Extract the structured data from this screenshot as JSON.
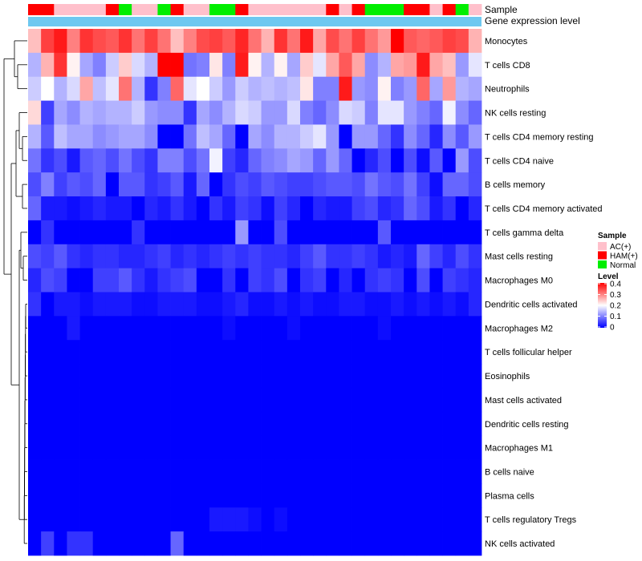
{
  "chart_data": {
    "type": "heatmap",
    "row_labels": [
      "Monocytes",
      "T cells CD8",
      "Neutrophils",
      "NK cells resting",
      "T cells CD4 memory resting",
      "T cells CD4 naive",
      "B cells memory",
      "T cells CD4 memory activated",
      "T cells gamma delta",
      "Mast cells resting",
      "Macrophages M0",
      "Dendritic cells activated",
      "Macrophages M2",
      "T cells follicular helper",
      "Eosinophils",
      "Mast cells activated",
      "Dendritic cells resting",
      "Macrophages M1",
      "B cells naive",
      "Plasma cells",
      "T cells regulatory  Tregs",
      "NK cells activated"
    ],
    "n_columns": 35,
    "annotation_rows": [
      {
        "label": "Sample",
        "values": [
          "HAM(+)",
          "HAM(+)",
          "AC(+)",
          "AC(+)",
          "AC(+)",
          "AC(+)",
          "HAM(+)",
          "Normal",
          "AC(+)",
          "AC(+)",
          "Normal",
          "HAM(+)",
          "AC(+)",
          "AC(+)",
          "Normal",
          "Normal",
          "HAM(+)",
          "AC(+)",
          "AC(+)",
          "AC(+)",
          "AC(+)",
          "AC(+)",
          "AC(+)",
          "HAM(+)",
          "AC(+)",
          "HAM(+)",
          "Normal",
          "Normal",
          "Normal",
          "HAM(+)",
          "HAM(+)",
          "AC(+)",
          "HAM(+)",
          "Normal",
          "AC(+)"
        ]
      },
      {
        "label": "Gene expression level",
        "values": "single group (all columns)"
      }
    ],
    "values": [
      [
        0.25,
        0.35,
        0.38,
        0.3,
        0.36,
        0.34,
        0.33,
        0.36,
        0.31,
        0.35,
        0.31,
        0.25,
        0.3,
        0.34,
        0.35,
        0.33,
        0.37,
        0.31,
        0.26,
        0.36,
        0.31,
        0.38,
        0.27,
        0.34,
        0.31,
        0.35,
        0.31,
        0.28,
        0.4,
        0.33,
        0.32,
        0.33,
        0.35,
        0.34,
        0.26
      ],
      [
        0.14,
        0.26,
        0.36,
        0.21,
        0.13,
        0.1,
        0.16,
        0.24,
        0.17,
        0.14,
        0.4,
        0.4,
        0.09,
        0.1,
        0.22,
        0.1,
        0.38,
        0.21,
        0.14,
        0.21,
        0.13,
        0.24,
        0.18,
        0.27,
        0.33,
        0.27,
        0.11,
        0.14,
        0.27,
        0.28,
        0.38,
        0.27,
        0.25,
        0.12,
        0.18
      ],
      [
        0.16,
        0.2,
        0.14,
        0.17,
        0.27,
        0.15,
        0.18,
        0.31,
        0.14,
        0.04,
        0.1,
        0.32,
        0.18,
        0.2,
        0.16,
        0.12,
        0.16,
        0.14,
        0.15,
        0.14,
        0.15,
        0.22,
        0.1,
        0.1,
        0.38,
        0.12,
        0.11,
        0.21,
        0.1,
        0.12,
        0.32,
        0.13,
        0.28,
        0.14,
        0.13
      ],
      [
        0.23,
        0.05,
        0.13,
        0.11,
        0.14,
        0.13,
        0.14,
        0.14,
        0.16,
        0.12,
        0.11,
        0.11,
        0.04,
        0.13,
        0.11,
        0.14,
        0.17,
        0.16,
        0.12,
        0.12,
        0.17,
        0.1,
        0.08,
        0.11,
        0.17,
        0.16,
        0.1,
        0.18,
        0.18,
        0.12,
        0.1,
        0.08,
        0.19,
        0.11,
        0.08
      ],
      [
        0.14,
        0.07,
        0.15,
        0.13,
        0.13,
        0.11,
        0.12,
        0.13,
        0.13,
        0.11,
        0.0,
        0.0,
        0.09,
        0.15,
        0.13,
        0.08,
        0.0,
        0.13,
        0.11,
        0.14,
        0.14,
        0.16,
        0.18,
        0.12,
        0.0,
        0.12,
        0.12,
        0.08,
        0.04,
        0.11,
        0.08,
        0.03,
        0.11,
        0.07,
        0.12
      ],
      [
        0.09,
        0.04,
        0.06,
        0.02,
        0.07,
        0.08,
        0.06,
        0.09,
        0.06,
        0.04,
        0.1,
        0.1,
        0.06,
        0.09,
        0.19,
        0.05,
        0.03,
        0.08,
        0.1,
        0.11,
        0.13,
        0.12,
        0.08,
        0.12,
        0.08,
        0.0,
        0.03,
        0.06,
        0.0,
        0.06,
        0.01,
        0.07,
        0.0,
        0.12,
        0.06
      ],
      [
        0.06,
        0.1,
        0.05,
        0.07,
        0.06,
        0.08,
        0.0,
        0.07,
        0.07,
        0.04,
        0.05,
        0.07,
        0.02,
        0.08,
        0.0,
        0.04,
        0.06,
        0.05,
        0.07,
        0.06,
        0.05,
        0.05,
        0.06,
        0.07,
        0.07,
        0.06,
        0.09,
        0.07,
        0.06,
        0.09,
        0.05,
        0.01,
        0.08,
        0.08,
        0.06
      ],
      [
        0.08,
        0.02,
        0.02,
        0.01,
        0.02,
        0.03,
        0.02,
        0.02,
        0.0,
        0.03,
        0.02,
        0.04,
        0.02,
        0.0,
        0.04,
        0.02,
        0.05,
        0.04,
        0.01,
        0.05,
        0.03,
        0.0,
        0.03,
        0.02,
        0.02,
        0.05,
        0.06,
        0.03,
        0.04,
        0.08,
        0.06,
        0.02,
        0.04,
        0.0,
        0.03
      ],
      [
        0.0,
        0.04,
        0.0,
        0.0,
        0.0,
        0.0,
        0.0,
        0.0,
        0.04,
        0.0,
        0.0,
        0.0,
        0.0,
        0.0,
        0.0,
        0.0,
        0.12,
        0.0,
        0.0,
        0.06,
        0.0,
        0.0,
        0.0,
        0.0,
        0.0,
        0.0,
        0.0,
        0.07,
        0.0,
        0.0,
        0.0,
        0.0,
        0.0,
        0.0,
        0.0
      ],
      [
        0.06,
        0.05,
        0.07,
        0.04,
        0.03,
        0.04,
        0.04,
        0.03,
        0.03,
        0.04,
        0.05,
        0.03,
        0.04,
        0.03,
        0.04,
        0.05,
        0.04,
        0.05,
        0.04,
        0.04,
        0.03,
        0.05,
        0.07,
        0.04,
        0.04,
        0.05,
        0.04,
        0.02,
        0.03,
        0.02,
        0.08,
        0.05,
        0.03,
        0.06,
        0.04
      ],
      [
        0.03,
        0.06,
        0.05,
        0.0,
        0.0,
        0.05,
        0.05,
        0.07,
        0.04,
        0.02,
        0.04,
        0.05,
        0.06,
        0.0,
        0.0,
        0.04,
        0.0,
        0.05,
        0.04,
        0.06,
        0.0,
        0.04,
        0.05,
        0.0,
        0.03,
        0.0,
        0.04,
        0.05,
        0.04,
        0.0,
        0.06,
        0.0,
        0.05,
        0.04,
        0.03
      ],
      [
        0.04,
        0.0,
        0.02,
        0.02,
        0.01,
        0.02,
        0.02,
        0.02,
        0.01,
        0.01,
        0.02,
        0.02,
        0.02,
        0.01,
        0.01,
        0.02,
        0.03,
        0.01,
        0.01,
        0.02,
        0.01,
        0.02,
        0.01,
        0.01,
        0.02,
        0.02,
        0.01,
        0.01,
        0.02,
        0.01,
        0.02,
        0.01,
        0.02,
        0.01,
        0.03
      ],
      [
        0.0,
        0.0,
        0.0,
        0.02,
        0.0,
        0.0,
        0.0,
        0.0,
        0.0,
        0.0,
        0.0,
        0.0,
        0.0,
        0.0,
        0.0,
        0.01,
        0.0,
        0.0,
        0.0,
        0.0,
        0.01,
        0.0,
        0.0,
        0.0,
        0.0,
        0.0,
        0.0,
        0.01,
        0.0,
        0.0,
        0.0,
        0.0,
        0.0,
        0.0,
        0.0
      ],
      [
        0.0,
        0.0,
        0.0,
        0.0,
        0.0,
        0.0,
        0.0,
        0.0,
        0.0,
        0.0,
        0.0,
        0.0,
        0.0,
        0.0,
        0.0,
        0.0,
        0.0,
        0.0,
        0.0,
        0.0,
        0.0,
        0.0,
        0.0,
        0.0,
        0.0,
        0.0,
        0.0,
        0.0,
        0.0,
        0.0,
        0.0,
        0.0,
        0.0,
        0.0,
        0.0
      ],
      [
        0.0,
        0.0,
        0.0,
        0.0,
        0.0,
        0.0,
        0.0,
        0.0,
        0.0,
        0.0,
        0.0,
        0.0,
        0.0,
        0.0,
        0.0,
        0.0,
        0.0,
        0.0,
        0.0,
        0.0,
        0.0,
        0.0,
        0.0,
        0.0,
        0.0,
        0.0,
        0.0,
        0.0,
        0.0,
        0.0,
        0.0,
        0.0,
        0.0,
        0.0,
        0.0
      ],
      [
        0.0,
        0.0,
        0.0,
        0.0,
        0.0,
        0.0,
        0.0,
        0.0,
        0.0,
        0.0,
        0.0,
        0.0,
        0.0,
        0.0,
        0.0,
        0.0,
        0.0,
        0.0,
        0.0,
        0.0,
        0.0,
        0.0,
        0.0,
        0.0,
        0.0,
        0.0,
        0.0,
        0.0,
        0.0,
        0.0,
        0.0,
        0.0,
        0.0,
        0.0,
        0.0
      ],
      [
        0.0,
        0.0,
        0.0,
        0.0,
        0.0,
        0.0,
        0.0,
        0.0,
        0.0,
        0.0,
        0.0,
        0.0,
        0.0,
        0.0,
        0.0,
        0.0,
        0.0,
        0.0,
        0.0,
        0.0,
        0.0,
        0.0,
        0.0,
        0.0,
        0.0,
        0.0,
        0.0,
        0.0,
        0.0,
        0.0,
        0.0,
        0.0,
        0.0,
        0.0,
        0.0
      ],
      [
        0.0,
        0.0,
        0.0,
        0.0,
        0.0,
        0.0,
        0.0,
        0.0,
        0.0,
        0.0,
        0.0,
        0.0,
        0.0,
        0.0,
        0.0,
        0.0,
        0.0,
        0.0,
        0.0,
        0.0,
        0.0,
        0.0,
        0.0,
        0.0,
        0.0,
        0.0,
        0.0,
        0.0,
        0.0,
        0.0,
        0.0,
        0.0,
        0.0,
        0.0,
        0.0
      ],
      [
        0.0,
        0.0,
        0.0,
        0.0,
        0.0,
        0.0,
        0.0,
        0.0,
        0.0,
        0.0,
        0.0,
        0.0,
        0.0,
        0.0,
        0.0,
        0.0,
        0.0,
        0.0,
        0.0,
        0.0,
        0.0,
        0.0,
        0.0,
        0.0,
        0.0,
        0.0,
        0.0,
        0.0,
        0.0,
        0.0,
        0.0,
        0.0,
        0.0,
        0.0,
        0.0
      ],
      [
        0.0,
        0.0,
        0.0,
        0.0,
        0.0,
        0.0,
        0.0,
        0.0,
        0.0,
        0.0,
        0.0,
        0.0,
        0.0,
        0.0,
        0.0,
        0.0,
        0.0,
        0.0,
        0.0,
        0.0,
        0.0,
        0.0,
        0.0,
        0.0,
        0.0,
        0.0,
        0.0,
        0.0,
        0.0,
        0.0,
        0.0,
        0.0,
        0.0,
        0.0,
        0.0
      ],
      [
        0.0,
        0.0,
        0.0,
        0.0,
        0.0,
        0.0,
        0.0,
        0.0,
        0.0,
        0.0,
        0.0,
        0.0,
        0.0,
        0.0,
        0.02,
        0.02,
        0.02,
        0.01,
        0.0,
        0.01,
        0.0,
        0.0,
        0.0,
        0.0,
        0.0,
        0.0,
        0.0,
        0.0,
        0.0,
        0.0,
        0.0,
        0.0,
        0.0,
        0.0,
        0.0
      ],
      [
        0.0,
        0.05,
        0.0,
        0.04,
        0.04,
        0.0,
        0.0,
        0.0,
        0.0,
        0.0,
        0.0,
        0.08,
        0.0,
        0.0,
        0.0,
        0.0,
        0.0,
        0.0,
        0.0,
        0.0,
        0.0,
        0.0,
        0.0,
        0.0,
        0.0,
        0.0,
        0.0,
        0.0,
        0.0,
        0.0,
        0.0,
        0.0,
        0.0,
        0.0,
        0.0
      ]
    ],
    "color_scale": {
      "min": 0,
      "max": 0.4,
      "low": "#0000FF",
      "mid": "#FFFFFF",
      "high": "#FF0000",
      "midpoint": 0.2
    },
    "legends": {
      "sample": {
        "title": "Sample",
        "entries": [
          {
            "label": "AC(+)",
            "color": "#FFC0CB"
          },
          {
            "label": "HAM(+)",
            "color": "#FF0000"
          },
          {
            "label": "Normal",
            "color": "#00EE00"
          }
        ]
      },
      "group_color": "#6EC8F0",
      "level": {
        "title": "Level",
        "ticks": [
          "0.4",
          "0.3",
          "0.2",
          "0.1",
          "0"
        ]
      }
    },
    "row_dendrogram": true
  }
}
